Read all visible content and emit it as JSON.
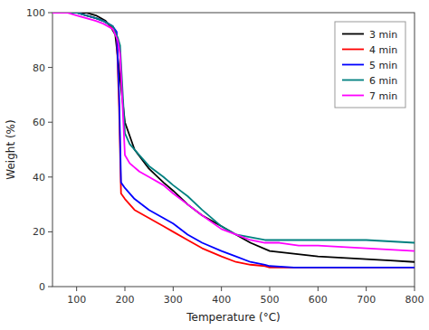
{
  "chart_data": {
    "type": "line",
    "xlabel": "Temperature (°C)",
    "ylabel": "Weight (%)",
    "xlim": [
      50,
      800
    ],
    "ylim": [
      0,
      100
    ],
    "xticks": [
      100,
      200,
      300,
      400,
      500,
      600,
      700,
      800
    ],
    "yticks": [
      0,
      20,
      40,
      60,
      80,
      100
    ],
    "grid": false,
    "legend": "upper right",
    "series": [
      {
        "name": "3 min",
        "color": "#000000",
        "x": [
          50,
          80,
          100,
          120,
          130,
          140,
          150,
          160,
          170,
          180,
          200,
          220,
          250,
          280,
          300,
          330,
          360,
          400,
          430,
          460,
          500,
          550,
          600,
          650,
          700,
          750,
          800
        ],
        "values": [
          100,
          100,
          100,
          100,
          99.5,
          99,
          98,
          97,
          95,
          92,
          60,
          50,
          43,
          38,
          35,
          30,
          26,
          22,
          19,
          16,
          13,
          12,
          11,
          10.5,
          10,
          9.5,
          9
        ]
      },
      {
        "name": "4 min",
        "color": "#ff0000",
        "x": [
          50,
          80,
          100,
          120,
          140,
          155,
          165,
          175,
          183,
          188,
          192,
          200,
          220,
          250,
          280,
          300,
          330,
          360,
          400,
          430,
          460,
          490,
          500,
          550,
          600,
          650,
          700,
          750,
          800
        ],
        "values": [
          100,
          100,
          100,
          99,
          98,
          97,
          96,
          94,
          92,
          65,
          34,
          32,
          28,
          25,
          22,
          20,
          17,
          14,
          11,
          9,
          8,
          7.5,
          7,
          7,
          7,
          7,
          7,
          7,
          7
        ]
      },
      {
        "name": "5 min",
        "color": "#0000ff",
        "x": [
          50,
          80,
          100,
          120,
          140,
          155,
          165,
          175,
          183,
          188,
          192,
          200,
          220,
          250,
          280,
          300,
          330,
          360,
          400,
          430,
          460,
          490,
          500,
          550,
          600,
          650,
          700,
          750,
          800
        ],
        "values": [
          100,
          100,
          100,
          99,
          98,
          97,
          96,
          95,
          93,
          70,
          38,
          36,
          32,
          28,
          25,
          23,
          19,
          16,
          13,
          11,
          9,
          8,
          7.5,
          7,
          7,
          7,
          7,
          7,
          7
        ]
      },
      {
        "name": "6 min",
        "color": "#008080",
        "x": [
          50,
          80,
          100,
          120,
          140,
          155,
          165,
          175,
          180,
          185,
          190,
          200,
          210,
          230,
          250,
          280,
          300,
          330,
          360,
          400,
          430,
          460,
          490,
          520,
          560,
          600,
          650,
          700,
          750,
          800
        ],
        "values": [
          100,
          100,
          100,
          99,
          98,
          97,
          96,
          95,
          93,
          91,
          88,
          56,
          52,
          48,
          44,
          40,
          37,
          33,
          28,
          22,
          19,
          18,
          17,
          17,
          17,
          17,
          17,
          17,
          16.5,
          16
        ]
      },
      {
        "name": "7 min",
        "color": "#ff00ff",
        "x": [
          50,
          80,
          100,
          120,
          140,
          155,
          165,
          175,
          180,
          185,
          190,
          200,
          210,
          230,
          250,
          280,
          300,
          330,
          360,
          400,
          430,
          460,
          490,
          520,
          560,
          600,
          650,
          700,
          750,
          800
        ],
        "values": [
          100,
          100,
          99,
          98,
          97,
          96,
          95,
          94,
          92,
          90,
          85,
          48,
          45,
          42,
          40,
          37,
          34,
          30,
          26,
          21,
          19,
          17,
          16,
          16,
          15,
          15,
          14.5,
          14,
          13.5,
          13
        ]
      }
    ]
  }
}
